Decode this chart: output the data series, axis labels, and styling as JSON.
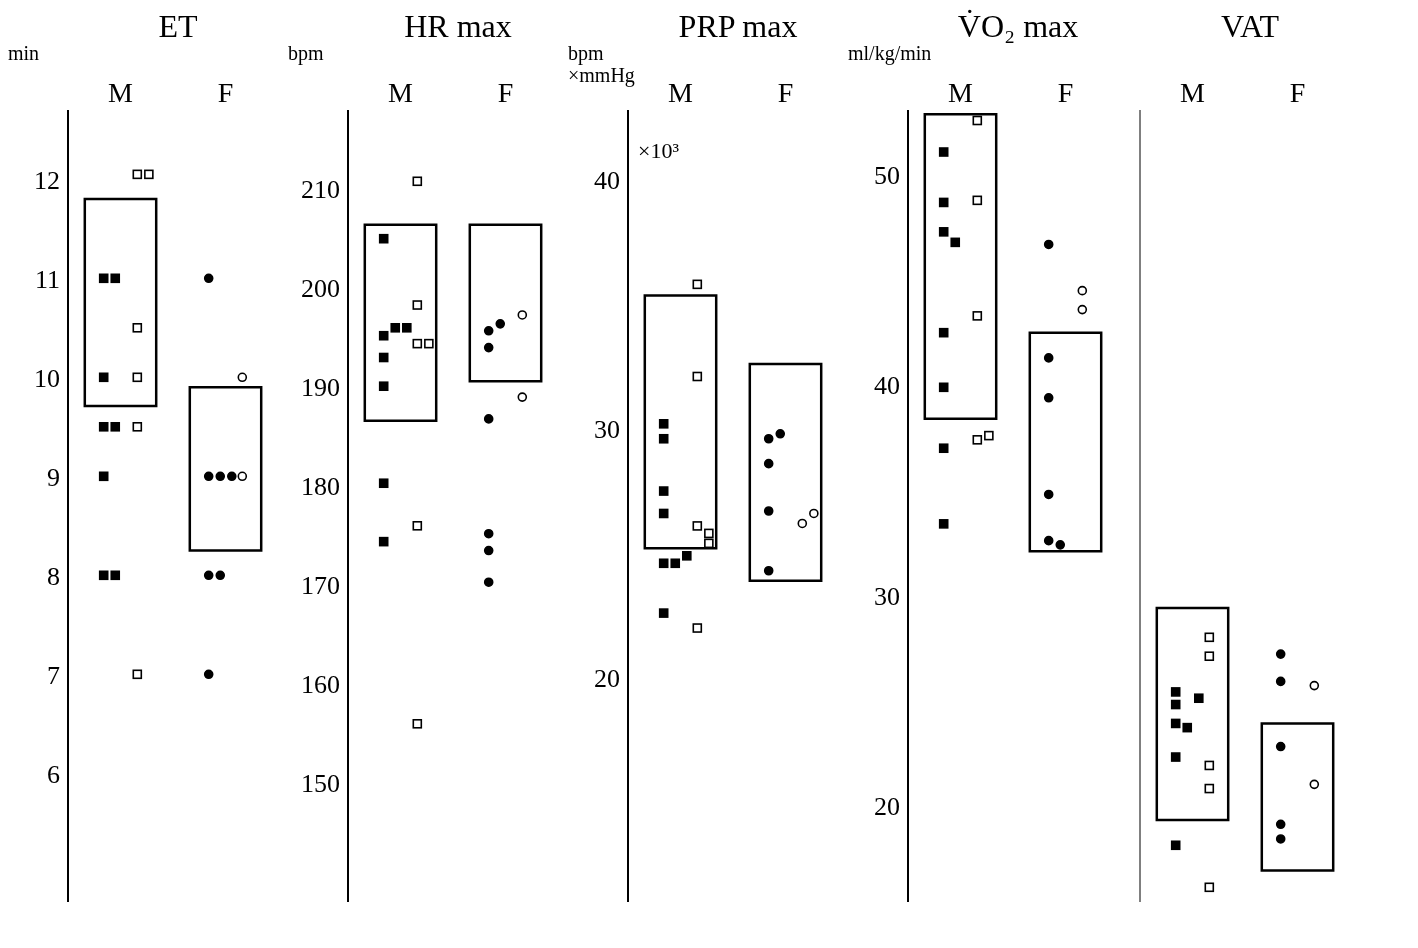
{
  "chart_data": [
    {
      "type": "scatter",
      "title": "ET",
      "ylabel": "min",
      "categories": [
        "M",
        "F"
      ],
      "ylim": [
        4.7,
        12.7
      ],
      "yticks": [
        6,
        7,
        8,
        9,
        10,
        11,
        12
      ],
      "series": [
        {
          "type": "bar",
          "color": "#000000",
          "x": [
            "M",
            "F"
          ],
          "base": [
            9.71,
            8.25
          ],
          "values": [
            2.09,
            1.65
          ]
        },
        {
          "marker": "square",
          "color": "#000000",
          "x": [
            "M",
            "M",
            "M",
            "M",
            "M",
            "M",
            "M",
            "M"
          ],
          "values": [
            11,
            11,
            10,
            9.5,
            9.5,
            9,
            8,
            8
          ]
        },
        {
          "marker": "square",
          "color": "#ffffff",
          "x": [
            "M",
            "M",
            "M",
            "M",
            "M",
            "M"
          ],
          "values": [
            12.05,
            12.05,
            10.5,
            10,
            9.5,
            7
          ]
        },
        {
          "marker": "circle",
          "color": "#000000",
          "x": [
            "F",
            "F",
            "F",
            "F",
            "F",
            "F",
            "F"
          ],
          "values": [
            11,
            9,
            9,
            9,
            8,
            8,
            7
          ]
        },
        {
          "marker": "circle",
          "color": "#ffffff",
          "x": [
            "F",
            "F"
          ],
          "values": [
            10,
            9
          ]
        }
      ]
    },
    {
      "type": "scatter",
      "title": "HR max",
      "ylabel": "bpm",
      "categories": [
        "M",
        "F"
      ],
      "ylim": [
        138,
        218
      ],
      "yticks": [
        150,
        160,
        170,
        180,
        190,
        200,
        210
      ],
      "series": [
        {
          "type": "bar",
          "color": "#000000",
          "x": [
            "M",
            "F"
          ],
          "base": [
            186.6,
            190.6
          ],
          "values": [
            19.8,
            15.8
          ]
        },
        {
          "marker": "square",
          "color": "#000000",
          "x": [
            "M",
            "M",
            "M",
            "M",
            "M",
            "M",
            "M",
            "M"
          ],
          "values": [
            205,
            195.2,
            196,
            196,
            193,
            190.1,
            180.3,
            174.4
          ]
        },
        {
          "marker": "square",
          "color": "#ffffff",
          "x": [
            "M",
            "M",
            "M",
            "M",
            "M",
            "M"
          ],
          "values": [
            210.8,
            198.3,
            194.4,
            194.4,
            176,
            156
          ]
        },
        {
          "marker": "circle",
          "color": "#000000",
          "x": [
            "F",
            "F",
            "F",
            "F",
            "F",
            "F",
            "F"
          ],
          "values": [
            195.7,
            196.4,
            194,
            186.8,
            175.2,
            173.5,
            170.3
          ]
        },
        {
          "marker": "circle",
          "color": "#ffffff",
          "x": [
            "F",
            "F"
          ],
          "values": [
            197.3,
            189
          ]
        }
      ]
    },
    {
      "type": "scatter",
      "title": "PRP max",
      "ylabel": "bpm ×mmHg",
      "annotations": [
        "×10³"
      ],
      "categories": [
        "M",
        "F"
      ],
      "ylim": [
        11,
        42.8
      ],
      "yticks": [
        20,
        30,
        40
      ],
      "series": [
        {
          "type": "bar",
          "color": "#000000",
          "x": [
            "M",
            "F"
          ],
          "base": [
            25.2,
            23.9
          ],
          "values": [
            10.15,
            8.7
          ]
        },
        {
          "marker": "square",
          "color": "#000000",
          "x": [
            "M",
            "M",
            "M",
            "M",
            "M",
            "M",
            "M",
            "M"
          ],
          "values": [
            29.6,
            30.2,
            27.5,
            26.6,
            24.6,
            24.6,
            24.9,
            22.6
          ]
        },
        {
          "marker": "square",
          "color": "#ffffff",
          "x": [
            "M",
            "M",
            "M",
            "M",
            "M",
            "M"
          ],
          "values": [
            35.8,
            32.1,
            26.1,
            25.8,
            25.4,
            22
          ]
        },
        {
          "marker": "circle",
          "color": "#000000",
          "x": [
            "F",
            "F",
            "F",
            "F",
            "F"
          ],
          "values": [
            29.6,
            29.8,
            28.6,
            26.7,
            24.3
          ]
        },
        {
          "marker": "circle",
          "color": "#ffffff",
          "x": [
            "F",
            "F"
          ],
          "values": [
            26.2,
            26.6
          ]
        }
      ]
    },
    {
      "type": "scatter",
      "title": "V̇O₂ max",
      "ylabel": "ml/kg/min",
      "categories": [
        "M",
        "F"
      ],
      "ylim": [
        15.4,
        53.1
      ],
      "yticks": [
        20,
        30,
        40,
        50
      ],
      "series": [
        {
          "type": "bar",
          "color": "#000000",
          "x": [
            "M",
            "F"
          ],
          "base": [
            38.4,
            32.1
          ],
          "values": [
            14.5,
            10.4
          ]
        },
        {
          "marker": "square",
          "color": "#000000",
          "x": [
            "M",
            "M",
            "M",
            "M",
            "M",
            "M",
            "M",
            "M"
          ],
          "values": [
            51.1,
            48.7,
            47.3,
            46.8,
            42.5,
            39.9,
            37,
            33.4
          ]
        },
        {
          "marker": "square",
          "color": "#ffffff",
          "x": [
            "M",
            "M",
            "M",
            "M",
            "M"
          ],
          "values": [
            52.6,
            48.8,
            43.3,
            37.4,
            37.6
          ]
        },
        {
          "marker": "circle",
          "color": "#000000",
          "x": [
            "F",
            "F",
            "F",
            "F",
            "F",
            "F"
          ],
          "values": [
            46.7,
            41.3,
            39.4,
            34.8,
            32.6,
            32.4
          ]
        },
        {
          "marker": "circle",
          "color": "#ffffff",
          "x": [
            "F",
            "F"
          ],
          "values": [
            43.6,
            44.5
          ]
        }
      ]
    },
    {
      "type": "scatter",
      "title": "VAT",
      "categories": [
        "M",
        "F"
      ],
      "ylim": [
        15.4,
        53.1
      ],
      "tick_labels": "x",
      "series": [
        {
          "type": "bar",
          "color": "#000000",
          "x": [
            "M",
            "F"
          ],
          "base": [
            19.3,
            16.9
          ],
          "values": [
            10.1,
            7
          ]
        },
        {
          "marker": "square",
          "color": "#000000",
          "x": [
            "M",
            "M",
            "M",
            "M",
            "M",
            "M",
            "M"
          ],
          "values": [
            25.4,
            24.8,
            25.1,
            23.9,
            23.7,
            22.3,
            18.1
          ]
        },
        {
          "marker": "square",
          "color": "#ffffff",
          "x": [
            "M",
            "M",
            "M",
            "M",
            "M"
          ],
          "values": [
            28,
            27.1,
            21.9,
            20.8,
            16.1
          ]
        },
        {
          "marker": "circle",
          "color": "#000000",
          "x": [
            "F",
            "F",
            "F",
            "F",
            "F"
          ],
          "values": [
            27.2,
            25.9,
            22.8,
            19.1,
            18.4
          ]
        },
        {
          "marker": "circle",
          "color": "#ffffff",
          "x": [
            "F",
            "F"
          ],
          "values": [
            25.7,
            21
          ]
        }
      ]
    }
  ]
}
